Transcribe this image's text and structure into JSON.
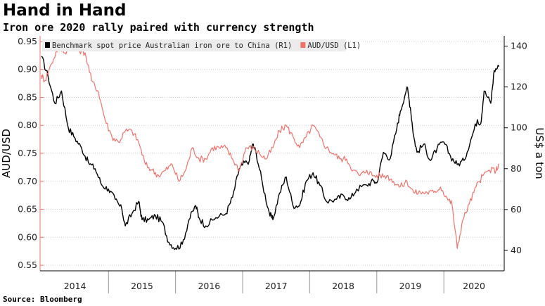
{
  "header": {
    "title": "Hand in Hand",
    "subtitle": "Iron ore 2020 rally paired with currency strength"
  },
  "footer": {
    "source": "Source: Bloomberg"
  },
  "chart_data": {
    "type": "line",
    "title": "Hand in Hand",
    "subtitle": "Iron ore 2020 rally paired with currency strength",
    "x_categories": [
      "2014",
      "2015",
      "2016",
      "2017",
      "2018",
      "2019",
      "2020"
    ],
    "left_axis": {
      "label": "AUD/USD",
      "range": [
        0.54,
        0.96
      ],
      "ticks": [
        0.55,
        0.6,
        0.65,
        0.7,
        0.75,
        0.8,
        0.85,
        0.9,
        0.95
      ]
    },
    "right_axis": {
      "label": "US$ a ton",
      "range": [
        30,
        145
      ],
      "ticks": [
        40,
        60,
        80,
        100,
        120,
        140
      ]
    },
    "grid": true,
    "legend_position": "top-left",
    "series": [
      {
        "name": "Benchmark spot price Australian iron ore to China (R1)",
        "axis": "right",
        "color": "#000000",
        "points": [
          [
            2014.0,
            135
          ],
          [
            2014.1,
            125
          ],
          [
            2014.2,
            112
          ],
          [
            2014.3,
            118
          ],
          [
            2014.4,
            100
          ],
          [
            2014.5,
            95
          ],
          [
            2014.6,
            90
          ],
          [
            2014.7,
            83
          ],
          [
            2014.8,
            80
          ],
          [
            2014.9,
            72
          ],
          [
            2015.0,
            70
          ],
          [
            2015.1,
            65
          ],
          [
            2015.2,
            60
          ],
          [
            2015.25,
            52
          ],
          [
            2015.35,
            58
          ],
          [
            2015.45,
            64
          ],
          [
            2015.5,
            55
          ],
          [
            2015.6,
            55
          ],
          [
            2015.7,
            57
          ],
          [
            2015.8,
            54
          ],
          [
            2015.9,
            44
          ],
          [
            2016.0,
            41
          ],
          [
            2016.1,
            43
          ],
          [
            2016.2,
            55
          ],
          [
            2016.3,
            62
          ],
          [
            2016.35,
            56
          ],
          [
            2016.45,
            52
          ],
          [
            2016.6,
            56
          ],
          [
            2016.75,
            58
          ],
          [
            2016.85,
            66
          ],
          [
            2016.95,
            80
          ],
          [
            2017.0,
            82
          ],
          [
            2017.1,
            84
          ],
          [
            2017.15,
            92
          ],
          [
            2017.2,
            88
          ],
          [
            2017.3,
            72
          ],
          [
            2017.4,
            58
          ],
          [
            2017.45,
            55
          ],
          [
            2017.55,
            68
          ],
          [
            2017.65,
            76
          ],
          [
            2017.75,
            62
          ],
          [
            2017.85,
            62
          ],
          [
            2017.95,
            74
          ],
          [
            2018.05,
            78
          ],
          [
            2018.15,
            72
          ],
          [
            2018.25,
            64
          ],
          [
            2018.4,
            65
          ],
          [
            2018.5,
            67
          ],
          [
            2018.6,
            65
          ],
          [
            2018.7,
            70
          ],
          [
            2018.85,
            72
          ],
          [
            2018.95,
            74
          ],
          [
            2019.0,
            73
          ],
          [
            2019.1,
            88
          ],
          [
            2019.2,
            85
          ],
          [
            2019.3,
            100
          ],
          [
            2019.35,
            108
          ],
          [
            2019.45,
            120
          ],
          [
            2019.5,
            110
          ],
          [
            2019.55,
            96
          ],
          [
            2019.6,
            88
          ],
          [
            2019.7,
            92
          ],
          [
            2019.8,
            84
          ],
          [
            2019.9,
            90
          ],
          [
            2020.0,
            93
          ],
          [
            2020.1,
            86
          ],
          [
            2020.2,
            82
          ],
          [
            2020.3,
            84
          ],
          [
            2020.4,
            94
          ],
          [
            2020.5,
            104
          ],
          [
            2020.55,
            102
          ],
          [
            2020.6,
            118
          ],
          [
            2020.7,
            112
          ],
          [
            2020.75,
            128
          ],
          [
            2020.82,
            130
          ]
        ]
      },
      {
        "name": "AUD/USD (L1)",
        "axis": "left",
        "color": "#f2726a",
        "points": [
          [
            2014.0,
            0.89
          ],
          [
            2014.05,
            0.88
          ],
          [
            2014.15,
            0.91
          ],
          [
            2014.25,
            0.94
          ],
          [
            2014.35,
            0.93
          ],
          [
            2014.45,
            0.945
          ],
          [
            2014.55,
            0.935
          ],
          [
            2014.65,
            0.93
          ],
          [
            2014.75,
            0.88
          ],
          [
            2014.85,
            0.86
          ],
          [
            2014.95,
            0.81
          ],
          [
            2015.05,
            0.78
          ],
          [
            2015.15,
            0.77
          ],
          [
            2015.25,
            0.79
          ],
          [
            2015.35,
            0.79
          ],
          [
            2015.45,
            0.77
          ],
          [
            2015.55,
            0.73
          ],
          [
            2015.65,
            0.72
          ],
          [
            2015.75,
            0.71
          ],
          [
            2015.85,
            0.72
          ],
          [
            2015.95,
            0.73
          ],
          [
            2016.05,
            0.7
          ],
          [
            2016.15,
            0.72
          ],
          [
            2016.25,
            0.76
          ],
          [
            2016.35,
            0.74
          ],
          [
            2016.45,
            0.74
          ],
          [
            2016.55,
            0.76
          ],
          [
            2016.65,
            0.76
          ],
          [
            2016.75,
            0.76
          ],
          [
            2016.85,
            0.74
          ],
          [
            2016.95,
            0.72
          ],
          [
            2017.05,
            0.76
          ],
          [
            2017.15,
            0.76
          ],
          [
            2017.25,
            0.75
          ],
          [
            2017.35,
            0.74
          ],
          [
            2017.45,
            0.76
          ],
          [
            2017.55,
            0.79
          ],
          [
            2017.65,
            0.8
          ],
          [
            2017.75,
            0.78
          ],
          [
            2017.85,
            0.76
          ],
          [
            2017.95,
            0.78
          ],
          [
            2018.05,
            0.8
          ],
          [
            2018.15,
            0.78
          ],
          [
            2018.25,
            0.76
          ],
          [
            2018.35,
            0.75
          ],
          [
            2018.45,
            0.74
          ],
          [
            2018.55,
            0.74
          ],
          [
            2018.65,
            0.72
          ],
          [
            2018.75,
            0.71
          ],
          [
            2018.85,
            0.72
          ],
          [
            2018.95,
            0.71
          ],
          [
            2019.05,
            0.71
          ],
          [
            2019.15,
            0.71
          ],
          [
            2019.25,
            0.7
          ],
          [
            2019.35,
            0.69
          ],
          [
            2019.45,
            0.7
          ],
          [
            2019.55,
            0.68
          ],
          [
            2019.65,
            0.68
          ],
          [
            2019.75,
            0.68
          ],
          [
            2019.85,
            0.68
          ],
          [
            2019.95,
            0.69
          ],
          [
            2020.05,
            0.67
          ],
          [
            2020.12,
            0.66
          ],
          [
            2020.2,
            0.58
          ],
          [
            2020.28,
            0.63
          ],
          [
            2020.38,
            0.66
          ],
          [
            2020.48,
            0.69
          ],
          [
            2020.58,
            0.71
          ],
          [
            2020.68,
            0.72
          ],
          [
            2020.78,
            0.72
          ],
          [
            2020.82,
            0.73
          ]
        ]
      }
    ]
  }
}
